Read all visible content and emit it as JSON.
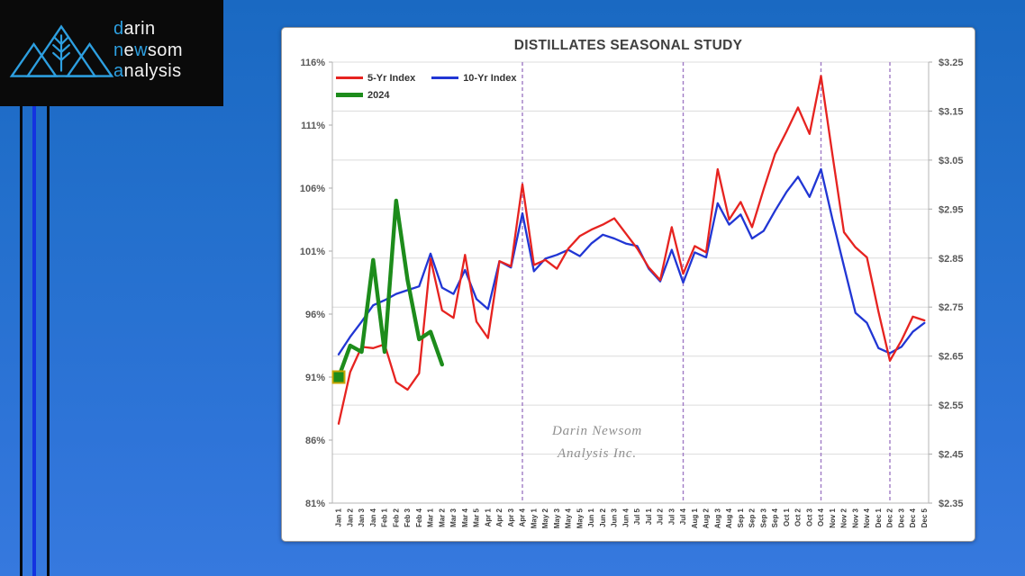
{
  "logo": {
    "accent_color": "#2d9fe0",
    "company_lines": [
      {
        "parts": [
          {
            "text": "d",
            "accent": true
          },
          {
            "text": "arin",
            "accent": false
          }
        ]
      },
      {
        "parts": [
          {
            "text": "n",
            "accent": true
          },
          {
            "text": "e",
            "accent": false
          },
          {
            "text": "w",
            "accent": true
          },
          {
            "text": "som",
            "accent": false
          }
        ]
      },
      {
        "parts": [
          {
            "text": "a",
            "accent": true
          },
          {
            "text": "nalysis",
            "accent": false
          }
        ]
      }
    ]
  },
  "chart": {
    "title": "DISTILLATES SEASONAL STUDY",
    "legend": [
      {
        "label": "5-Yr Index",
        "color": "#e62320",
        "thickness": 2.5
      },
      {
        "label": "10-Yr Index",
        "color": "#2136d4",
        "thickness": 2.5
      },
      {
        "label": "2024",
        "color": "#1d8c1b",
        "thickness": 5
      }
    ],
    "watermark": {
      "line1": "Darin Newsom",
      "line2": "Analysis Inc."
    }
  },
  "chart_data": {
    "type": "line",
    "title": "DISTILLATES SEASONAL STUDY",
    "legend_position": "top-left",
    "grid": "horizontal gridlines at right-axis (price) ticks",
    "categories": [
      "Jan 1",
      "Jan 2",
      "Jan 3",
      "Jan 4",
      "Feb 1",
      "Feb 2",
      "Feb 3",
      "Feb 4",
      "Mar 1",
      "Mar 2",
      "Mar 3",
      "Mar 4",
      "Mar 5",
      "Apr 1",
      "Apr 2",
      "Apr 3",
      "Apr 4",
      "May 1",
      "May 2",
      "May 3",
      "May 4",
      "May 5",
      "Jun 1",
      "Jun 2",
      "Jun 3",
      "Jun 4",
      "Jul 5",
      "Jul 1",
      "Jul 2",
      "Jul 3",
      "Jul 4",
      "Aug 1",
      "Aug 2",
      "Aug 3",
      "Aug 4",
      "Sep 1",
      "Sep 2",
      "Sep 3",
      "Sep 4",
      "Oct 1",
      "Oct 2",
      "Oct 3",
      "Oct 4",
      "Nov 1",
      "Nov 2",
      "Nov 3",
      "Nov 4",
      "Dec 1",
      "Dec 2",
      "Dec 3",
      "Dec 4",
      "Dec 5"
    ],
    "series": [
      {
        "name": "5-Yr Index",
        "color": "#e62320",
        "axis": "percent",
        "values": [
          87.3,
          91.4,
          93.4,
          93.3,
          93.6,
          90.6,
          90.0,
          91.3,
          100.4,
          96.3,
          95.7,
          100.7,
          95.4,
          94.1,
          100.2,
          99.8,
          106.3,
          99.9,
          100.3,
          99.6,
          101.2,
          102.2,
          102.7,
          103.1,
          103.6,
          102.4,
          101.2,
          99.7,
          98.7,
          102.9,
          99.2,
          101.4,
          100.9,
          107.5,
          103.5,
          104.9,
          102.9,
          105.9,
          108.7,
          110.5,
          112.4,
          110.3,
          114.9,
          108.6,
          102.5,
          101.3,
          100.5,
          96.2,
          92.3,
          93.9,
          95.8,
          95.5
        ]
      },
      {
        "name": "10-Yr Index",
        "color": "#2136d4",
        "axis": "percent",
        "values": [
          92.8,
          94.2,
          95.4,
          96.7,
          97.1,
          97.6,
          97.9,
          98.2,
          100.8,
          98.1,
          97.6,
          99.5,
          97.2,
          96.4,
          100.2,
          99.7,
          104.0,
          99.4,
          100.4,
          100.7,
          101.1,
          100.6,
          101.6,
          102.3,
          102.0,
          101.6,
          101.4,
          99.6,
          98.6,
          101.1,
          98.5,
          100.9,
          100.5,
          104.8,
          103.1,
          103.9,
          102.0,
          102.6,
          104.2,
          105.7,
          106.9,
          105.3,
          107.5,
          103.5,
          99.8,
          96.1,
          95.3,
          93.3,
          92.9,
          93.4,
          94.6,
          95.3
        ]
      },
      {
        "name": "2024",
        "color": "#1d8c1b",
        "axis": "percent",
        "values": [
          91.0,
          93.5,
          93.0,
          100.3,
          93.0,
          105.0,
          98.7,
          94.0,
          94.6,
          92.0
        ]
      }
    ],
    "start_marker": {
      "series": "2024",
      "category": "Jan 1",
      "value": 91.0,
      "fill": "#1d8c1b",
      "stroke": "#c8a400"
    },
    "left_axis": {
      "label": "index percent",
      "ticks": [
        "116%",
        "111%",
        "106%",
        "101%",
        "96%",
        "91%",
        "86%",
        "81%"
      ],
      "min": 81,
      "max": 116,
      "step": 5
    },
    "right_axis": {
      "label": "price",
      "ticks": [
        "$3.25",
        "$3.15",
        "$3.05",
        "$2.95",
        "$2.85",
        "$2.75",
        "$2.65",
        "$2.55",
        "$2.45",
        "$2.35"
      ],
      "min": 2.35,
      "max": 3.25,
      "step": 0.1
    },
    "vertical_reference_lines": {
      "style": "dashed",
      "color": "#a07cc5",
      "at_categories": [
        "Apr 4",
        "Jul 4",
        "Oct 4",
        "Dec 2"
      ]
    }
  }
}
